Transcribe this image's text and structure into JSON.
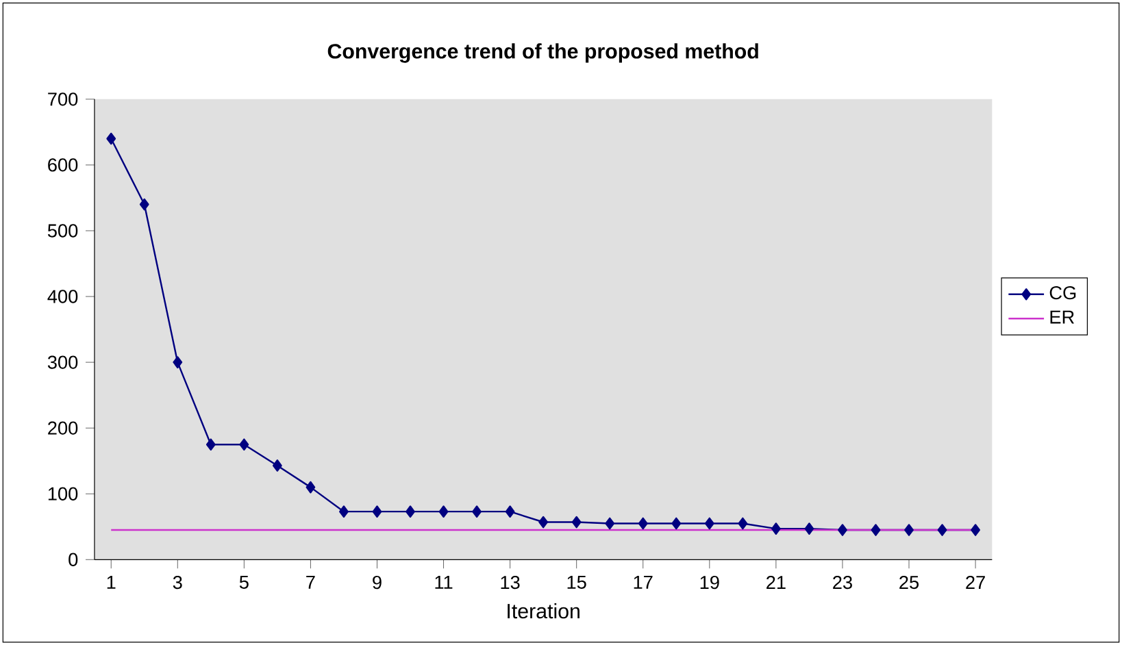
{
  "chart_data": {
    "type": "line",
    "title": "Convergence trend of the proposed method",
    "xlabel": "Iteration",
    "categories": [
      "1",
      null,
      "3",
      null,
      "5",
      null,
      "7",
      null,
      "9",
      null,
      "11",
      null,
      "13",
      null,
      "15",
      null,
      "17",
      null,
      "19",
      null,
      "21",
      null,
      "23",
      null,
      "25",
      null,
      "27"
    ],
    "series": [
      {
        "name": "CG",
        "color": "#000080",
        "marker": "diamond",
        "values": [
          640,
          540,
          300,
          175,
          175,
          143,
          110,
          73,
          73,
          73,
          73,
          73,
          73,
          57,
          57,
          55,
          55,
          55,
          55,
          55,
          47,
          47,
          45,
          45,
          45,
          45,
          45
        ]
      },
      {
        "name": "ER",
        "color": "#cc33cc",
        "marker": "none",
        "values": [
          45,
          45,
          45,
          45,
          45,
          45,
          45,
          45,
          45,
          45,
          45,
          45,
          45,
          45,
          45,
          45,
          45,
          45,
          45,
          45,
          45,
          45,
          45,
          45,
          45,
          45,
          45
        ]
      }
    ],
    "ylim": [
      0,
      700
    ],
    "yticks": [
      0,
      100,
      200,
      300,
      400,
      500,
      600,
      700
    ],
    "grid": false,
    "legend": "right"
  }
}
